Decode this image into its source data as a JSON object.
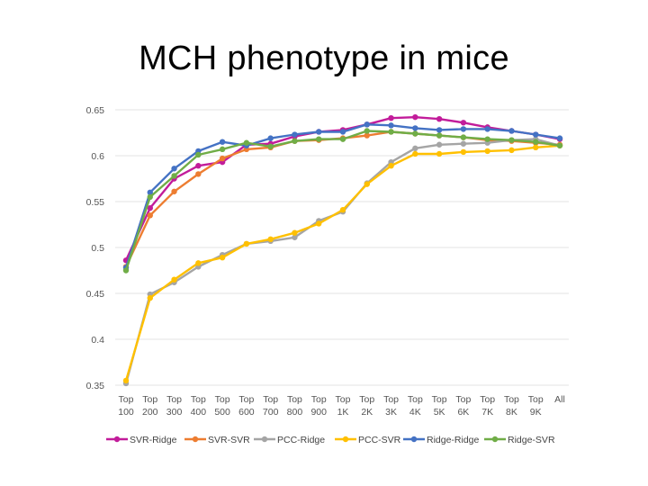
{
  "slide": {
    "title": "MCH phenotype in mice"
  },
  "chart_data": {
    "type": "line",
    "title": "MCH phenotype in mice",
    "xlabel": "",
    "ylabel": "",
    "ylim": [
      0.35,
      0.65
    ],
    "yticks": [
      0.35,
      0.4,
      0.45,
      0.5,
      0.55,
      0.6,
      0.65
    ],
    "ytick_labels": [
      "0.35",
      "0.4",
      "0.45",
      "0.5",
      "0.55",
      "0.6",
      "0.65"
    ],
    "grid": true,
    "legend_position": "bottom",
    "categories": [
      {
        "line1": "Top",
        "line2": "100"
      },
      {
        "line1": "Top",
        "line2": "200"
      },
      {
        "line1": "Top",
        "line2": "300"
      },
      {
        "line1": "Top",
        "line2": "400"
      },
      {
        "line1": "Top",
        "line2": "500"
      },
      {
        "line1": "Top",
        "line2": "600"
      },
      {
        "line1": "Top",
        "line2": "700"
      },
      {
        "line1": "Top",
        "line2": "800"
      },
      {
        "line1": "Top",
        "line2": "900"
      },
      {
        "line1": "Top",
        "line2": "1K"
      },
      {
        "line1": "Top",
        "line2": "2K"
      },
      {
        "line1": "Top",
        "line2": "3K"
      },
      {
        "line1": "Top",
        "line2": "4K"
      },
      {
        "line1": "Top",
        "line2": "5K"
      },
      {
        "line1": "Top",
        "line2": "6K"
      },
      {
        "line1": "Top",
        "line2": "7K"
      },
      {
        "line1": "Top",
        "line2": "8K"
      },
      {
        "line1": "Top",
        "line2": "9K"
      },
      {
        "line1": "All",
        "line2": ""
      }
    ],
    "series": [
      {
        "name": "SVR-Ridge",
        "color": "#c21c9a",
        "values": [
          0.486,
          0.543,
          0.575,
          0.589,
          0.593,
          0.612,
          0.613,
          0.621,
          0.626,
          0.628,
          0.634,
          0.641,
          0.642,
          0.64,
          0.636,
          0.631,
          0.627,
          0.623,
          0.618
        ]
      },
      {
        "name": "SVR-SVR",
        "color": "#ed7d31",
        "values": [
          0.479,
          0.535,
          0.561,
          0.58,
          0.597,
          0.607,
          0.609,
          0.616,
          0.617,
          0.619,
          0.622,
          0.626,
          0.624,
          0.622,
          0.62,
          0.617,
          0.616,
          0.614,
          0.612
        ]
      },
      {
        "name": "PCC-Ridge",
        "color": "#a5a5a5",
        "values": [
          0.352,
          0.449,
          0.462,
          0.479,
          0.492,
          0.504,
          0.507,
          0.511,
          0.529,
          0.539,
          0.57,
          0.593,
          0.608,
          0.612,
          0.613,
          0.614,
          0.617,
          0.618,
          0.611
        ]
      },
      {
        "name": "PCC-SVR",
        "color": "#ffc000",
        "values": [
          0.355,
          0.445,
          0.465,
          0.483,
          0.489,
          0.504,
          0.509,
          0.516,
          0.526,
          0.541,
          0.569,
          0.589,
          0.602,
          0.602,
          0.604,
          0.605,
          0.606,
          0.609,
          0.611
        ]
      },
      {
        "name": "Ridge-Ridge",
        "color": "#4472c4",
        "values": [
          0.478,
          0.56,
          0.586,
          0.605,
          0.615,
          0.611,
          0.619,
          0.623,
          0.626,
          0.626,
          0.634,
          0.633,
          0.63,
          0.628,
          0.629,
          0.629,
          0.627,
          0.623,
          0.619
        ]
      },
      {
        "name": "Ridge-SVR",
        "color": "#70ad47",
        "values": [
          0.475,
          0.555,
          0.578,
          0.601,
          0.607,
          0.614,
          0.61,
          0.616,
          0.618,
          0.618,
          0.627,
          0.626,
          0.624,
          0.622,
          0.62,
          0.618,
          0.617,
          0.615,
          0.611
        ]
      }
    ]
  }
}
